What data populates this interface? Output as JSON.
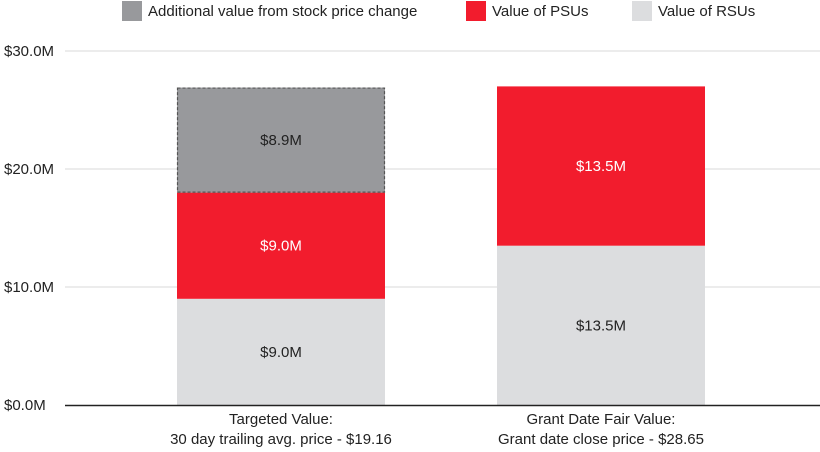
{
  "chart_data": {
    "type": "bar",
    "stacked": true,
    "title": "",
    "xlabel": "",
    "ylabel": "",
    "ylim": [
      0,
      30
    ],
    "yticks": [
      {
        "value": 0,
        "label": "$0.0M"
      },
      {
        "value": 10,
        "label": "$10.0M"
      },
      {
        "value": 20,
        "label": "$20.0M"
      },
      {
        "value": 30,
        "label": "$30.0M"
      }
    ],
    "grid": true,
    "legend_position": "top",
    "categories": [
      {
        "line1": "Targeted Value:",
        "line2": "30 day trailing avg. price - $19.16"
      },
      {
        "line1": "Grant Date Fair Value:",
        "line2": "Grant date close price - $28.65"
      }
    ],
    "series": [
      {
        "name": "Value of RSUs",
        "color": "#dcdddf",
        "label_color": "#222222",
        "values": [
          9.0,
          13.5
        ],
        "labels": [
          "$9.0M",
          "$13.5M"
        ]
      },
      {
        "name": "Value of PSUs",
        "color": "#f21c2d",
        "label_color": "#ffffff",
        "values": [
          9.0,
          13.5
        ],
        "labels": [
          "$9.0M",
          "$13.5M"
        ]
      },
      {
        "name": "Additional value from stock price change",
        "color": "#98999c",
        "label_color": "#222222",
        "dashed": true,
        "values": [
          8.9,
          0
        ],
        "labels": [
          "$8.9M",
          ""
        ]
      }
    ],
    "legend": [
      {
        "name": "Additional value from stock price change",
        "color": "#98999c"
      },
      {
        "name": "Value of PSUs",
        "color": "#f21c2d"
      },
      {
        "name": "Value of RSUs",
        "color": "#dcdddf"
      }
    ]
  }
}
